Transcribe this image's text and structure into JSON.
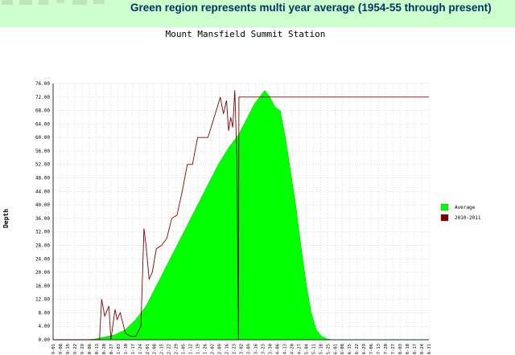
{
  "header": {
    "headline": "Green region represents multi year average (1954-55 through present)"
  },
  "chart_data": {
    "type": "area",
    "title": "Mount Mansfield Summit Station",
    "xlabel": "",
    "ylabel": "Depth",
    "ylim": [
      0,
      76
    ],
    "yticks": [
      "0.00",
      "4.00",
      "8.00",
      "12.00",
      "16.00",
      "20.00",
      "24.00",
      "28.00",
      "32.00",
      "36.00",
      "40.00",
      "44.00",
      "48.00",
      "52.00",
      "56.00",
      "60.00",
      "64.00",
      "68.00",
      "72.00",
      "76.00"
    ],
    "xticks": [
      "9-01",
      "9-08",
      "9-15",
      "9-22",
      "9-29",
      "10-06",
      "10-13",
      "10-20",
      "10-27",
      "11-03",
      "11-10",
      "11-17",
      "11-24",
      "12-01",
      "12-08",
      "12-15",
      "12-22",
      "12-29",
      "1-05",
      "1-12",
      "1-19",
      "1-26",
      "2-02",
      "2-09",
      "2-16",
      "2-23",
      "3-02",
      "3-09",
      "3-16",
      "3-23",
      "3-30",
      "4-06",
      "4-13",
      "4-20",
      "4-27",
      "5-04",
      "5-11",
      "5-18",
      "5-25",
      "6-01",
      "6-08",
      "6-15",
      "6-22",
      "6-29",
      "7-06",
      "7-13",
      "7-20",
      "7-27",
      "8-03",
      "8-10",
      "8-17",
      "8-24",
      "8-31"
    ],
    "grid": true,
    "legend_position": "right",
    "series": [
      {
        "name": "Average",
        "color": "#00ff00",
        "style": "filled-area",
        "x": [
          0,
          10,
          20,
          30,
          40,
          50,
          60,
          70,
          80,
          90,
          100,
          110,
          120,
          130,
          140,
          150,
          160,
          170,
          175,
          180,
          185,
          190,
          195,
          200,
          205,
          210,
          215,
          220,
          225,
          230,
          235,
          240,
          245,
          250,
          255,
          260,
          265,
          270,
          280,
          290,
          300,
          310,
          320,
          330,
          340,
          350,
          360,
          364
        ],
        "values": [
          0,
          0,
          0,
          0,
          0.2,
          0.8,
          1.5,
          3,
          6,
          10,
          16,
          22,
          28,
          34,
          40,
          46,
          52,
          57,
          59,
          61,
          64,
          67,
          70,
          72,
          74,
          72,
          69,
          68,
          60,
          50,
          40,
          28,
          17,
          8,
          3,
          1,
          0.3,
          0,
          0,
          0,
          0,
          0,
          0,
          0,
          0,
          0,
          0,
          0
        ]
      },
      {
        "name": "2010-2011",
        "color": "#800000",
        "style": "line",
        "x": [
          0,
          45,
          47,
          50,
          54,
          56,
          60,
          62,
          65,
          70,
          75,
          80,
          85,
          88,
          90,
          93,
          96,
          100,
          105,
          110,
          115,
          120,
          125,
          130,
          135,
          140,
          145,
          150,
          155,
          160,
          162,
          165,
          168,
          170,
          172,
          174,
          176,
          178,
          179,
          179.5,
          180,
          181,
          185,
          190,
          200,
          250,
          300,
          364
        ],
        "values": [
          0,
          0,
          12,
          7,
          10,
          0,
          9,
          6,
          8,
          2,
          1,
          1,
          4,
          33,
          28,
          18,
          20,
          27,
          28,
          30,
          36,
          37,
          44,
          52,
          52,
          60,
          60,
          60,
          65,
          70,
          72,
          67,
          71,
          62,
          66,
          63,
          74,
          54,
          18,
          0,
          72,
          72,
          72,
          72,
          72,
          72,
          72,
          72
        ]
      }
    ]
  }
}
